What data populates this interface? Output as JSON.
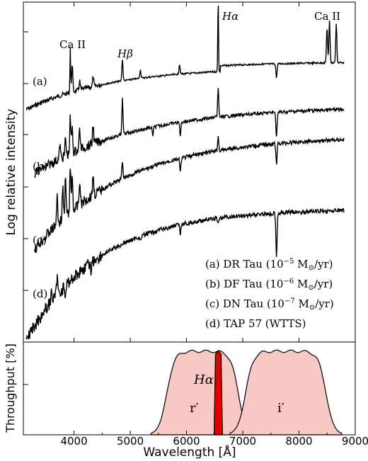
{
  "chart_data": [
    {
      "type": "line",
      "panel": "top",
      "ylabel": "Log relative intensity",
      "xlim": [
        3100,
        9000
      ],
      "ylog": true,
      "yticks_labeled": false,
      "series": [
        {
          "label": "(a)",
          "legend": "(a) DR Tau (10",
          "legend_exp": "−5",
          "legend_unit": " M",
          "legend_sun": "⊙",
          "legend_tail": "/yr)"
        },
        {
          "label": "(b)",
          "legend": "(b) DF Tau (10",
          "legend_exp": "−6",
          "legend_unit": " M",
          "legend_sun": "⊙",
          "legend_tail": "/yr)"
        },
        {
          "label": "(c)",
          "legend": "(c) DN Tau (10",
          "legend_exp": "−7",
          "legend_unit": " M",
          "legend_sun": "⊙",
          "legend_tail": "/yr)"
        },
        {
          "label": "(d)",
          "legend": "(d) TAP 57 (WTTS)"
        }
      ],
      "annotations": [
        {
          "text": "Ca II",
          "x": 3934
        },
        {
          "text": "Hβ",
          "x": 4861
        },
        {
          "text": "Hα",
          "x": 6563
        },
        {
          "text": "Ca II",
          "x": 8542
        }
      ]
    },
    {
      "type": "area",
      "panel": "bottom",
      "ylabel": "Throughput [%]",
      "xlabel": "Wavelength [Å]",
      "xlim": [
        3100,
        9000
      ],
      "xticks": [
        4000,
        5000,
        6000,
        7000,
        8000,
        9000
      ],
      "filters": [
        {
          "name": "r′",
          "range": [
            5500,
            7000
          ]
        },
        {
          "name": "Hα",
          "range": [
            6500,
            6630
          ],
          "highlight": true
        },
        {
          "name": "i′",
          "range": [
            6800,
            8600
          ]
        }
      ]
    }
  ]
}
